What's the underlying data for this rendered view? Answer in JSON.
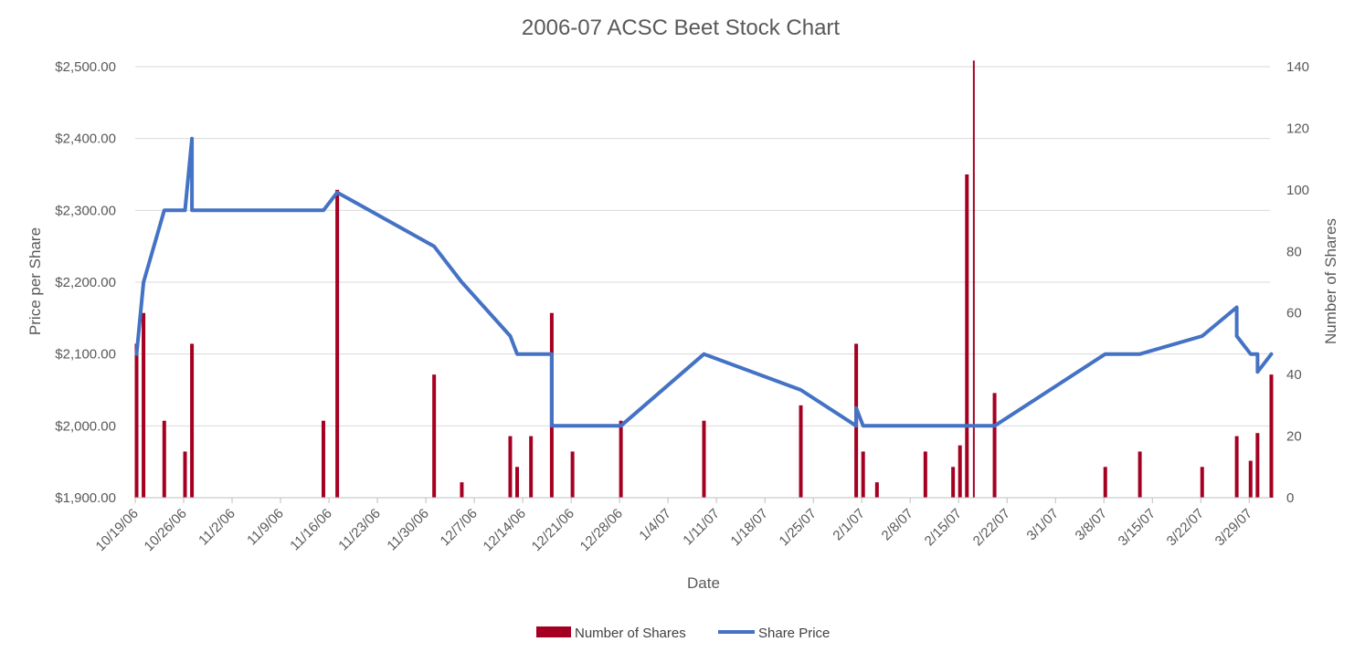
{
  "chart_data": {
    "type": "bar+line",
    "title": "2006-07 ACSC Beet Stock Chart",
    "xlabel": "Date",
    "ylabel_left": "Price per Share",
    "ylabel_right": "Number of Shares",
    "xlim": [
      "2006-10-19",
      "2007-04-01"
    ],
    "ylim_left": [
      1900,
      2500
    ],
    "ylim_right": [
      0,
      140
    ],
    "x_ticks": [
      "10/19/06",
      "10/26/06",
      "11/2/06",
      "11/9/06",
      "11/16/06",
      "11/23/06",
      "11/30/06",
      "12/7/06",
      "12/14/06",
      "12/21/06",
      "12/28/06",
      "1/4/07",
      "1/11/07",
      "1/18/07",
      "1/25/07",
      "2/1/07",
      "2/8/07",
      "2/15/07",
      "2/22/07",
      "3/1/07",
      "3/8/07",
      "3/15/07",
      "3/22/07",
      "3/29/07"
    ],
    "y_ticks_left": [
      "$1,900.00",
      "$2,000.00",
      "$2,100.00",
      "$2,200.00",
      "$2,300.00",
      "$2,400.00",
      "$2,500.00"
    ],
    "y_ticks_right": [
      "0",
      "20",
      "40",
      "60",
      "80",
      "100",
      "120",
      "140"
    ],
    "grid": "horizontal",
    "legend_position": "bottom",
    "colors": {
      "bars": "#a50021",
      "line": "#4472c4",
      "text": "#595959",
      "grid": "#d9d9d9",
      "axis": "#bfbfbf"
    },
    "series": [
      {
        "name": "Number of Shares",
        "type": "bar",
        "axis": "right",
        "points": [
          {
            "x": "2006-10-19",
            "y": 50
          },
          {
            "x": "2006-10-20",
            "y": 60
          },
          {
            "x": "2006-10-23",
            "y": 25
          },
          {
            "x": "2006-10-26",
            "y": 15
          },
          {
            "x": "2006-10-27",
            "y": 50
          },
          {
            "x": "2006-11-15",
            "y": 25
          },
          {
            "x": "2006-11-17",
            "y": 100
          },
          {
            "x": "2006-12-01",
            "y": 40
          },
          {
            "x": "2006-12-05",
            "y": 5
          },
          {
            "x": "2006-12-12",
            "y": 20
          },
          {
            "x": "2006-12-13",
            "y": 10
          },
          {
            "x": "2006-12-15",
            "y": 20
          },
          {
            "x": "2006-12-18",
            "y": 60
          },
          {
            "x": "2006-12-21",
            "y": 15
          },
          {
            "x": "2006-12-28",
            "y": 25
          },
          {
            "x": "2007-01-09",
            "y": 25
          },
          {
            "x": "2007-01-23",
            "y": 30
          },
          {
            "x": "2007-01-31",
            "y": 50
          },
          {
            "x": "2007-02-01",
            "y": 15
          },
          {
            "x": "2007-02-03",
            "y": 5
          },
          {
            "x": "2007-02-10",
            "y": 15
          },
          {
            "x": "2007-02-14",
            "y": 10
          },
          {
            "x": "2007-02-15",
            "y": 17
          },
          {
            "x": "2007-02-16",
            "y": 105
          },
          {
            "x": "2007-02-17",
            "y": 142
          },
          {
            "x": "2007-02-20",
            "y": 34
          },
          {
            "x": "2007-03-08",
            "y": 10
          },
          {
            "x": "2007-03-13",
            "y": 15
          },
          {
            "x": "2007-03-22",
            "y": 10
          },
          {
            "x": "2007-03-27",
            "y": 20
          },
          {
            "x": "2007-03-29",
            "y": 12
          },
          {
            "x": "2007-03-30",
            "y": 21
          },
          {
            "x": "2007-04-01",
            "y": 40
          }
        ]
      },
      {
        "name": "Share Price",
        "type": "line",
        "axis": "left",
        "points": [
          {
            "x": "2006-10-19",
            "y": 2100
          },
          {
            "x": "2006-10-20",
            "y": 2200
          },
          {
            "x": "2006-10-23",
            "y": 2300
          },
          {
            "x": "2006-10-26",
            "y": 2300
          },
          {
            "x": "2006-10-27",
            "y": 2400
          },
          {
            "x": "2006-10-27",
            "y": 2300
          },
          {
            "x": "2006-11-15",
            "y": 2300
          },
          {
            "x": "2006-11-17",
            "y": 2325
          },
          {
            "x": "2006-12-01",
            "y": 2250
          },
          {
            "x": "2006-12-05",
            "y": 2200
          },
          {
            "x": "2006-12-12",
            "y": 2125
          },
          {
            "x": "2006-12-13",
            "y": 2100
          },
          {
            "x": "2006-12-18",
            "y": 2100
          },
          {
            "x": "2006-12-18",
            "y": 2000
          },
          {
            "x": "2006-12-28",
            "y": 2000
          },
          {
            "x": "2007-01-09",
            "y": 2100
          },
          {
            "x": "2007-01-23",
            "y": 2050
          },
          {
            "x": "2007-01-31",
            "y": 2000
          },
          {
            "x": "2007-01-31",
            "y": 2025
          },
          {
            "x": "2007-02-01",
            "y": 2000
          },
          {
            "x": "2007-02-20",
            "y": 2000
          },
          {
            "x": "2007-03-08",
            "y": 2100
          },
          {
            "x": "2007-03-13",
            "y": 2100
          },
          {
            "x": "2007-03-22",
            "y": 2125
          },
          {
            "x": "2007-03-27",
            "y": 2165
          },
          {
            "x": "2007-03-27",
            "y": 2125
          },
          {
            "x": "2007-03-29",
            "y": 2100
          },
          {
            "x": "2007-03-30",
            "y": 2100
          },
          {
            "x": "2007-03-30",
            "y": 2075
          },
          {
            "x": "2007-04-01",
            "y": 2100
          }
        ]
      }
    ]
  }
}
